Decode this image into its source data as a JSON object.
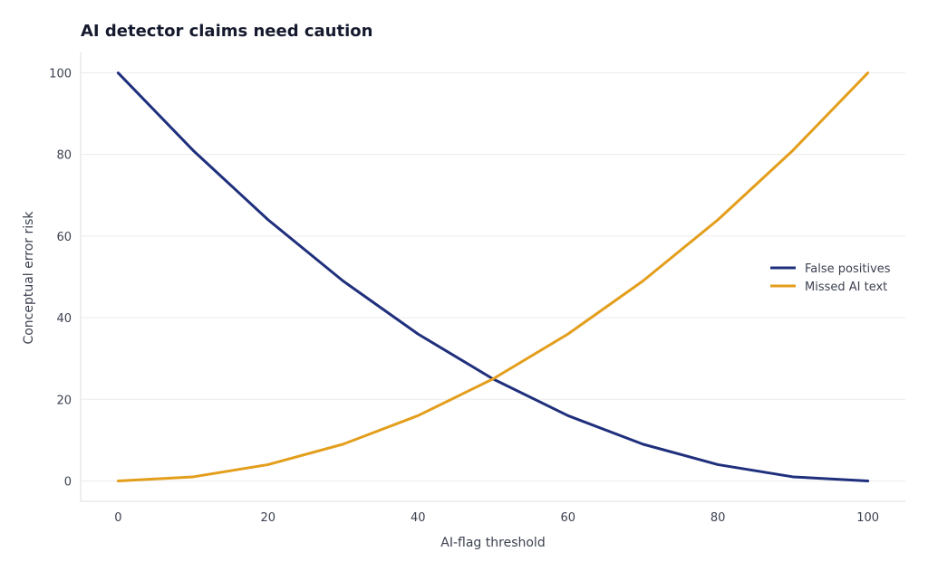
{
  "chart_data": {
    "type": "line",
    "title": "AI detector claims need caution",
    "xlabel": "AI-flag threshold",
    "ylabel": "Conceptual error risk",
    "x": [
      0,
      10,
      20,
      30,
      40,
      50,
      60,
      70,
      80,
      90,
      100
    ],
    "series": [
      {
        "name": "False positives",
        "color": "#1f2f7c",
        "values": [
          100,
          81,
          64,
          49,
          36,
          25,
          16,
          9,
          4,
          1,
          0
        ]
      },
      {
        "name": "Missed AI text",
        "color": "#e39e1c",
        "values": [
          0,
          1,
          4,
          9,
          16,
          25,
          36,
          49,
          64,
          81,
          100
        ]
      }
    ],
    "xlim": [
      -5,
      105
    ],
    "ylim": [
      -5,
      105
    ],
    "xticks": [
      0,
      20,
      40,
      60,
      80,
      100
    ],
    "yticks": [
      0,
      20,
      40,
      60,
      80,
      100
    ],
    "grid": "horizontal",
    "legend_position": "right"
  }
}
